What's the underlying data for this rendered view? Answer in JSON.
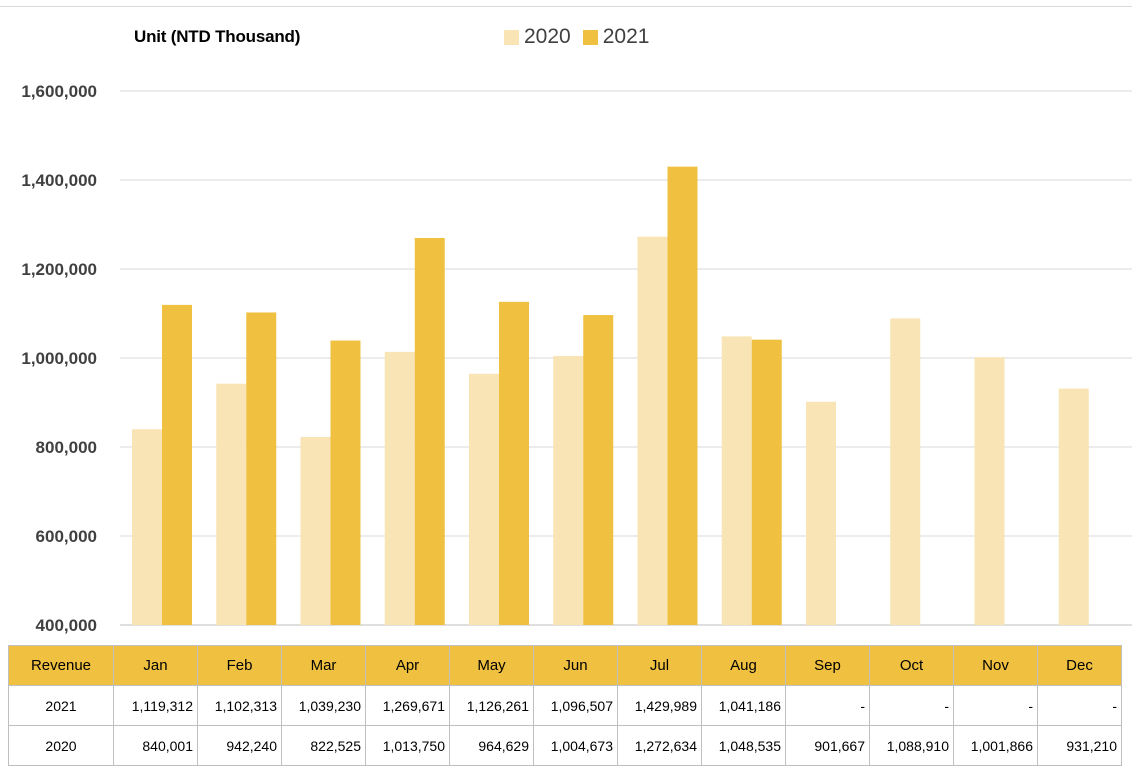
{
  "chart_data": {
    "type": "bar",
    "unit_label": "Unit (NTD Thousand)",
    "categories": [
      "Jan",
      "Feb",
      "Mar",
      "Apr",
      "May",
      "Jun",
      "Jul",
      "Aug",
      "Sep",
      "Oct",
      "Nov",
      "Dec"
    ],
    "series": [
      {
        "name": "2020",
        "color": "#f8e4b4",
        "values": [
          840001,
          942240,
          822525,
          1013750,
          964629,
          1004673,
          1272634,
          1048535,
          901667,
          1088910,
          1001866,
          931210
        ]
      },
      {
        "name": "2021",
        "color": "#f0c140",
        "values": [
          1119312,
          1102313,
          1039230,
          1269671,
          1126261,
          1096507,
          1429989,
          1041186,
          null,
          null,
          null,
          null
        ]
      }
    ],
    "ylim": [
      400000,
      1600000
    ],
    "yticks": [
      400000,
      600000,
      800000,
      1000000,
      1200000,
      1400000,
      1600000
    ],
    "ytick_labels": [
      "400,000",
      "600,000",
      "800,000",
      "1,000,000",
      "1,200,000",
      "1,400,000",
      "1,600,000"
    ],
    "grid": true,
    "legend_position": "top"
  },
  "table": {
    "header_label": "Revenue",
    "header_color": "#f0c140",
    "months": [
      "Jan",
      "Feb",
      "Mar",
      "Apr",
      "May",
      "Jun",
      "Jul",
      "Aug",
      "Sep",
      "Oct",
      "Nov",
      "Dec"
    ],
    "rows": [
      {
        "label": "2021",
        "cells": [
          "1,119,312",
          "1,102,313",
          "1,039,230",
          "1,269,671",
          "1,126,261",
          "1,096,507",
          "1,429,989",
          "1,041,186",
          "-",
          "-",
          "-",
          "-"
        ]
      },
      {
        "label": "2020",
        "cells": [
          "840,001",
          "942,240",
          "822,525",
          "1,013,750",
          "964,629",
          "1,004,673",
          "1,272,634",
          "1,048,535",
          "901,667",
          "1,088,910",
          "1,001,866",
          "931,210"
        ]
      }
    ]
  }
}
